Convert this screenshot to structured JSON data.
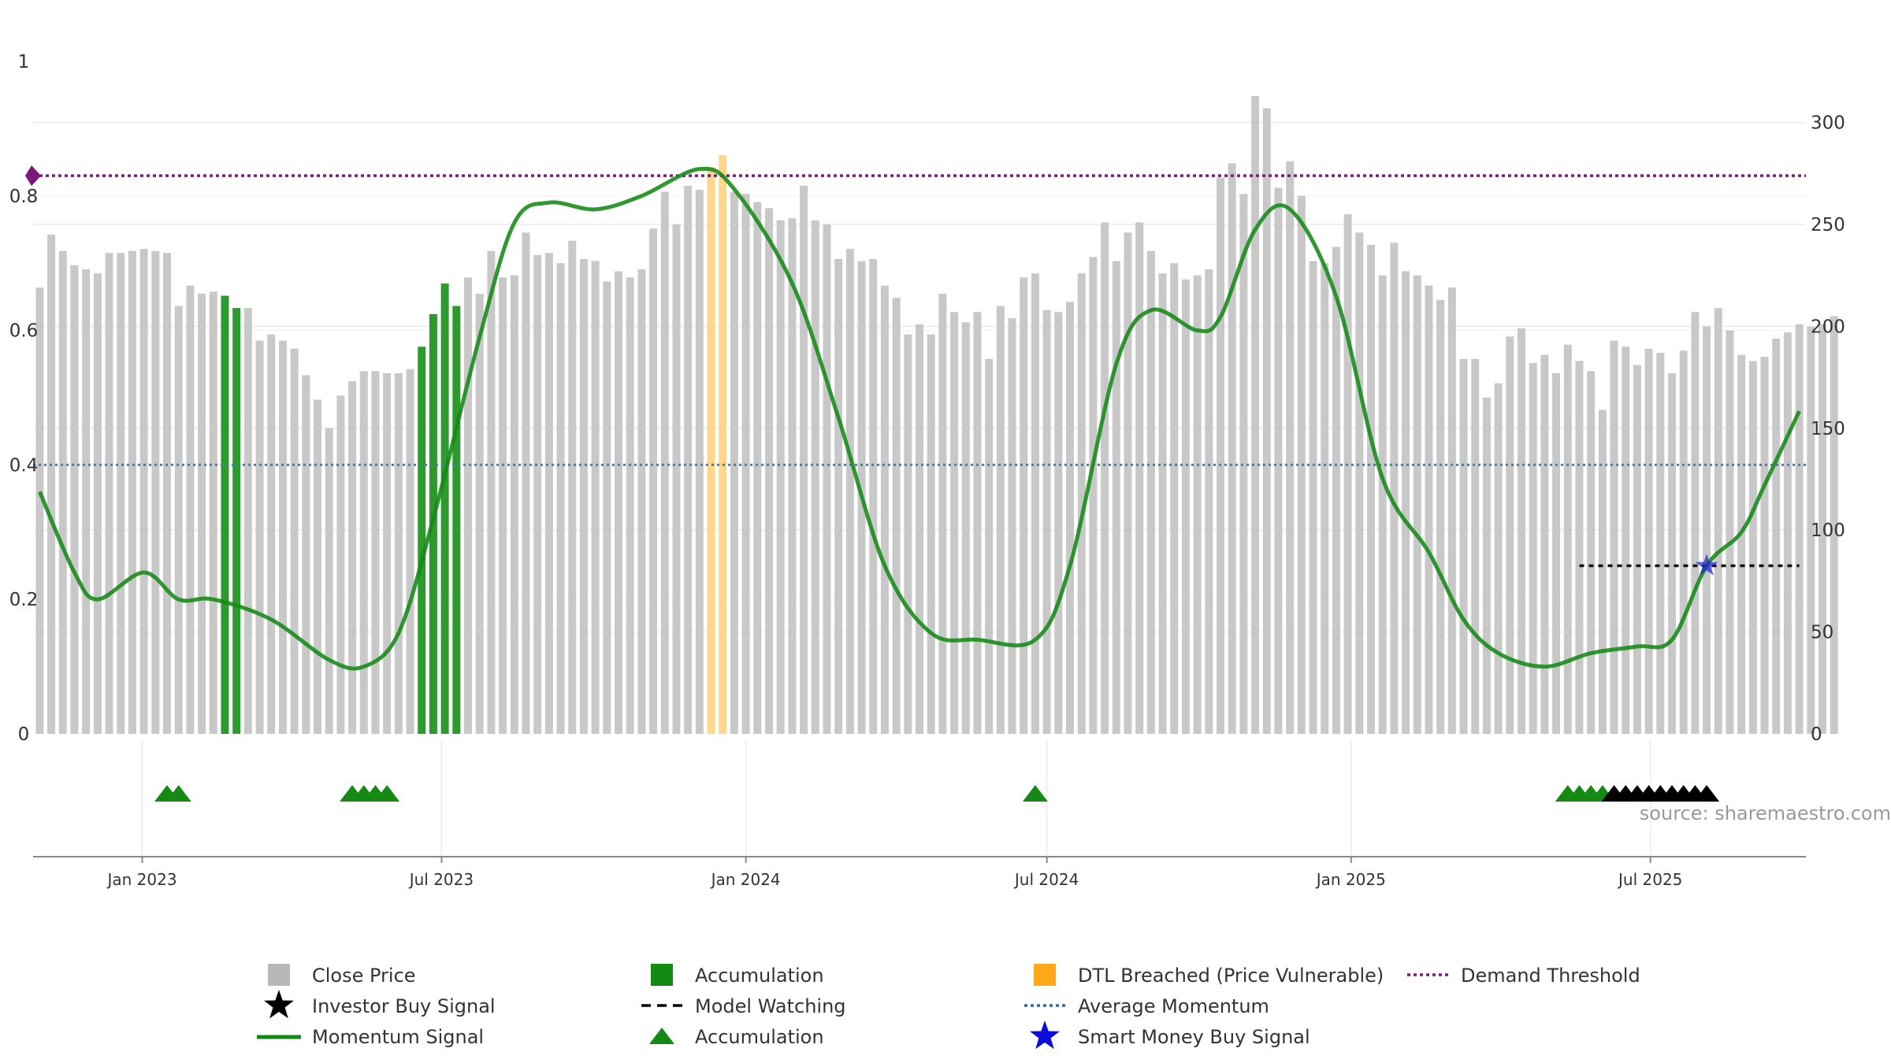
{
  "source_text": "source: sharemaestro.com",
  "chart_data": {
    "type": "bar",
    "x_start": "2022-10-31",
    "x_step_days": 7,
    "xlim": [
      "2022-10-27",
      "2025-10-03"
    ],
    "x_ticks": [
      {
        "date": "2023-01-01",
        "label": "Jan 2023"
      },
      {
        "date": "2023-07-01",
        "label": "Jul 2023"
      },
      {
        "date": "2024-01-01",
        "label": "Jan 2024"
      },
      {
        "date": "2024-07-01",
        "label": "Jul 2024"
      },
      {
        "date": "2025-01-01",
        "label": "Jan 2025"
      },
      {
        "date": "2025-07-01",
        "label": "Jul 2025"
      }
    ],
    "left_axis": {
      "ylim": [
        0,
        1
      ],
      "ticks": [
        "0",
        "0.2",
        "0.4",
        "0.6",
        "0.8",
        "1"
      ]
    },
    "right_axis": {
      "ylim": [
        0,
        330
      ],
      "ticks": [
        "0",
        "50",
        "100",
        "150",
        "200",
        "250",
        "300"
      ]
    },
    "grid": true,
    "colors": {
      "close": "#c8c8c8",
      "accumulation": "#2e9a2e",
      "dtl": "#ffd68a",
      "momentum": "#138a13",
      "average": "#4a7fa8",
      "threshold": "#7b1a7b",
      "watching": "#111111",
      "smart_money": "#1f1fd4"
    },
    "close_price": [
      219,
      245,
      237,
      230,
      228,
      226,
      236,
      236,
      237,
      238,
      237,
      236,
      210,
      220,
      216,
      217,
      215,
      209,
      209,
      193,
      196,
      193,
      189,
      176,
      164,
      150,
      166,
      173,
      178,
      178,
      177,
      177,
      179,
      190,
      206,
      221,
      210,
      224,
      216,
      237,
      224,
      225,
      246,
      235,
      236,
      231,
      242,
      233,
      232,
      222,
      227,
      224,
      228,
      248,
      266,
      250,
      269,
      267,
      278,
      284,
      266,
      265,
      261,
      258,
      252,
      253,
      269,
      252,
      250,
      233,
      238,
      232,
      233,
      220,
      214,
      196,
      201,
      196,
      216,
      207,
      202,
      207,
      184,
      210,
      204,
      224,
      226,
      208,
      207,
      212,
      226,
      234,
      251,
      232,
      246,
      251,
      237,
      226,
      231,
      223,
      225,
      228,
      273,
      280,
      265,
      313,
      307,
      268,
      281,
      264,
      232,
      231,
      239,
      255,
      246,
      240,
      225,
      241,
      227,
      225,
      220,
      213,
      219,
      184,
      184,
      165,
      172,
      195,
      199,
      182,
      186,
      177,
      191,
      183,
      178,
      159,
      193,
      190,
      181,
      189,
      187,
      177,
      188,
      207,
      200,
      209,
      198,
      186,
      183,
      185,
      194,
      197,
      201,
      200,
      201,
      205
    ],
    "close_series_color": [
      0,
      0,
      0,
      0,
      0,
      0,
      0,
      0,
      0,
      0,
      0,
      0,
      0,
      0,
      0,
      0,
      1,
      1,
      0,
      0,
      0,
      0,
      0,
      0,
      0,
      0,
      0,
      0,
      0,
      0,
      0,
      0,
      0,
      1,
      1,
      1,
      1,
      0,
      0,
      0,
      0,
      0,
      0,
      0,
      0,
      0,
      0,
      0,
      0,
      0,
      0,
      0,
      0,
      0,
      0,
      0,
      0,
      0,
      2,
      2,
      0,
      0,
      0,
      0,
      0,
      0,
      0,
      0,
      0,
      0,
      0,
      0,
      0,
      0,
      0,
      0,
      0,
      0,
      0,
      0,
      0,
      0,
      0,
      0,
      0,
      0,
      0,
      0,
      0,
      0,
      0,
      0,
      0,
      0,
      0,
      0,
      0,
      0,
      0,
      0,
      0,
      0,
      0,
      0,
      0,
      0,
      0,
      0,
      0,
      0,
      0,
      0,
      0,
      0,
      0,
      0,
      0,
      0,
      0,
      0,
      0,
      0,
      0,
      0,
      0,
      0,
      0,
      0,
      0,
      0,
      0,
      0,
      0,
      0,
      0,
      0,
      0,
      0,
      0,
      0,
      0,
      0,
      0,
      0,
      0,
      0,
      0,
      0,
      0,
      0,
      0,
      0,
      0,
      0,
      0,
      0,
      0,
      0,
      0
    ],
    "close_category_codes": {
      "0": "Close Price",
      "1": "Accumulation",
      "2": "DTL Breached (Price Vulnerable)"
    },
    "momentum": [
      [
        "2022-10-31",
        0.36
      ],
      [
        "2022-11-21",
        0.24
      ],
      [
        "2022-12-05",
        0.2
      ],
      [
        "2023-01-02",
        0.24
      ],
      [
        "2023-01-23",
        0.2
      ],
      [
        "2023-02-13",
        0.2
      ],
      [
        "2023-03-20",
        0.17
      ],
      [
        "2023-04-24",
        0.11
      ],
      [
        "2023-05-15",
        0.1
      ],
      [
        "2023-06-05",
        0.15
      ],
      [
        "2023-06-26",
        0.32
      ],
      [
        "2023-07-24",
        0.59
      ],
      [
        "2023-08-14",
        0.76
      ],
      [
        "2023-09-04",
        0.79
      ],
      [
        "2023-10-02",
        0.78
      ],
      [
        "2023-10-30",
        0.8
      ],
      [
        "2023-12-04",
        0.84
      ],
      [
        "2023-12-25",
        0.81
      ],
      [
        "2024-01-29",
        0.67
      ],
      [
        "2024-02-26",
        0.47
      ],
      [
        "2024-03-25",
        0.25
      ],
      [
        "2024-04-22",
        0.15
      ],
      [
        "2024-05-20",
        0.14
      ],
      [
        "2024-06-24",
        0.14
      ],
      [
        "2024-07-15",
        0.25
      ],
      [
        "2024-08-12",
        0.55
      ],
      [
        "2024-09-02",
        0.63
      ],
      [
        "2024-09-30",
        0.6
      ],
      [
        "2024-10-14",
        0.62
      ],
      [
        "2024-11-04",
        0.75
      ],
      [
        "2024-11-25",
        0.78
      ],
      [
        "2024-12-23",
        0.65
      ],
      [
        "2025-01-20",
        0.38
      ],
      [
        "2025-02-17",
        0.27
      ],
      [
        "2025-03-10",
        0.17
      ],
      [
        "2025-03-31",
        0.12
      ],
      [
        "2025-04-28",
        0.1
      ],
      [
        "2025-05-26",
        0.12
      ],
      [
        "2025-06-23",
        0.13
      ],
      [
        "2025-07-14",
        0.14
      ],
      [
        "2025-08-04",
        0.25
      ],
      [
        "2025-08-25",
        0.3
      ],
      [
        "2025-09-08",
        0.37
      ],
      [
        "2025-09-29",
        0.48
      ]
    ],
    "average_momentum": 0.4,
    "demand_threshold": 0.83,
    "model_watching": {
      "from": "2025-05-19",
      "to": "2025-09-29",
      "value": 0.25
    },
    "smart_money_buy_signal": {
      "date": "2025-08-04",
      "value": 0.25
    },
    "accumulation_markers": [
      "2023-01-16",
      "2023-01-23",
      "2023-05-08",
      "2023-05-15",
      "2023-05-22",
      "2023-05-29",
      "2024-06-24",
      "2025-05-12",
      "2025-05-19",
      "2025-05-26",
      "2025-06-02"
    ],
    "investor_buy_markers": [
      "2025-06-09",
      "2025-06-16",
      "2025-06-23",
      "2025-06-30",
      "2025-07-07",
      "2025-07-14",
      "2025-07-21",
      "2025-07-28",
      "2025-08-04"
    ],
    "legend": [
      {
        "label": "Close Price",
        "symbol": "square",
        "color": "#b8b8b8"
      },
      {
        "label": "Investor Buy Signal",
        "symbol": "star",
        "color": "#000000"
      },
      {
        "label": "Momentum Signal",
        "symbol": "line",
        "color": "#138a13"
      },
      {
        "label": "Accumulation",
        "symbol": "square",
        "color": "#148a14"
      },
      {
        "label": "Model Watching",
        "symbol": "dash",
        "color": "#000000"
      },
      {
        "label": "Accumulation",
        "symbol": "triangle",
        "color": "#148a14"
      },
      {
        "label": "DTL Breached (Price Vulnerable)",
        "symbol": "square",
        "color": "#ffa91a"
      },
      {
        "label": "Average Momentum",
        "symbol": "dots",
        "color": "#2a6ea8"
      },
      {
        "label": "Smart Money Buy Signal",
        "symbol": "star",
        "color": "#0d0dd9"
      },
      {
        "label": "Demand Threshold",
        "symbol": "dots",
        "color": "#7b1a7b"
      }
    ]
  }
}
